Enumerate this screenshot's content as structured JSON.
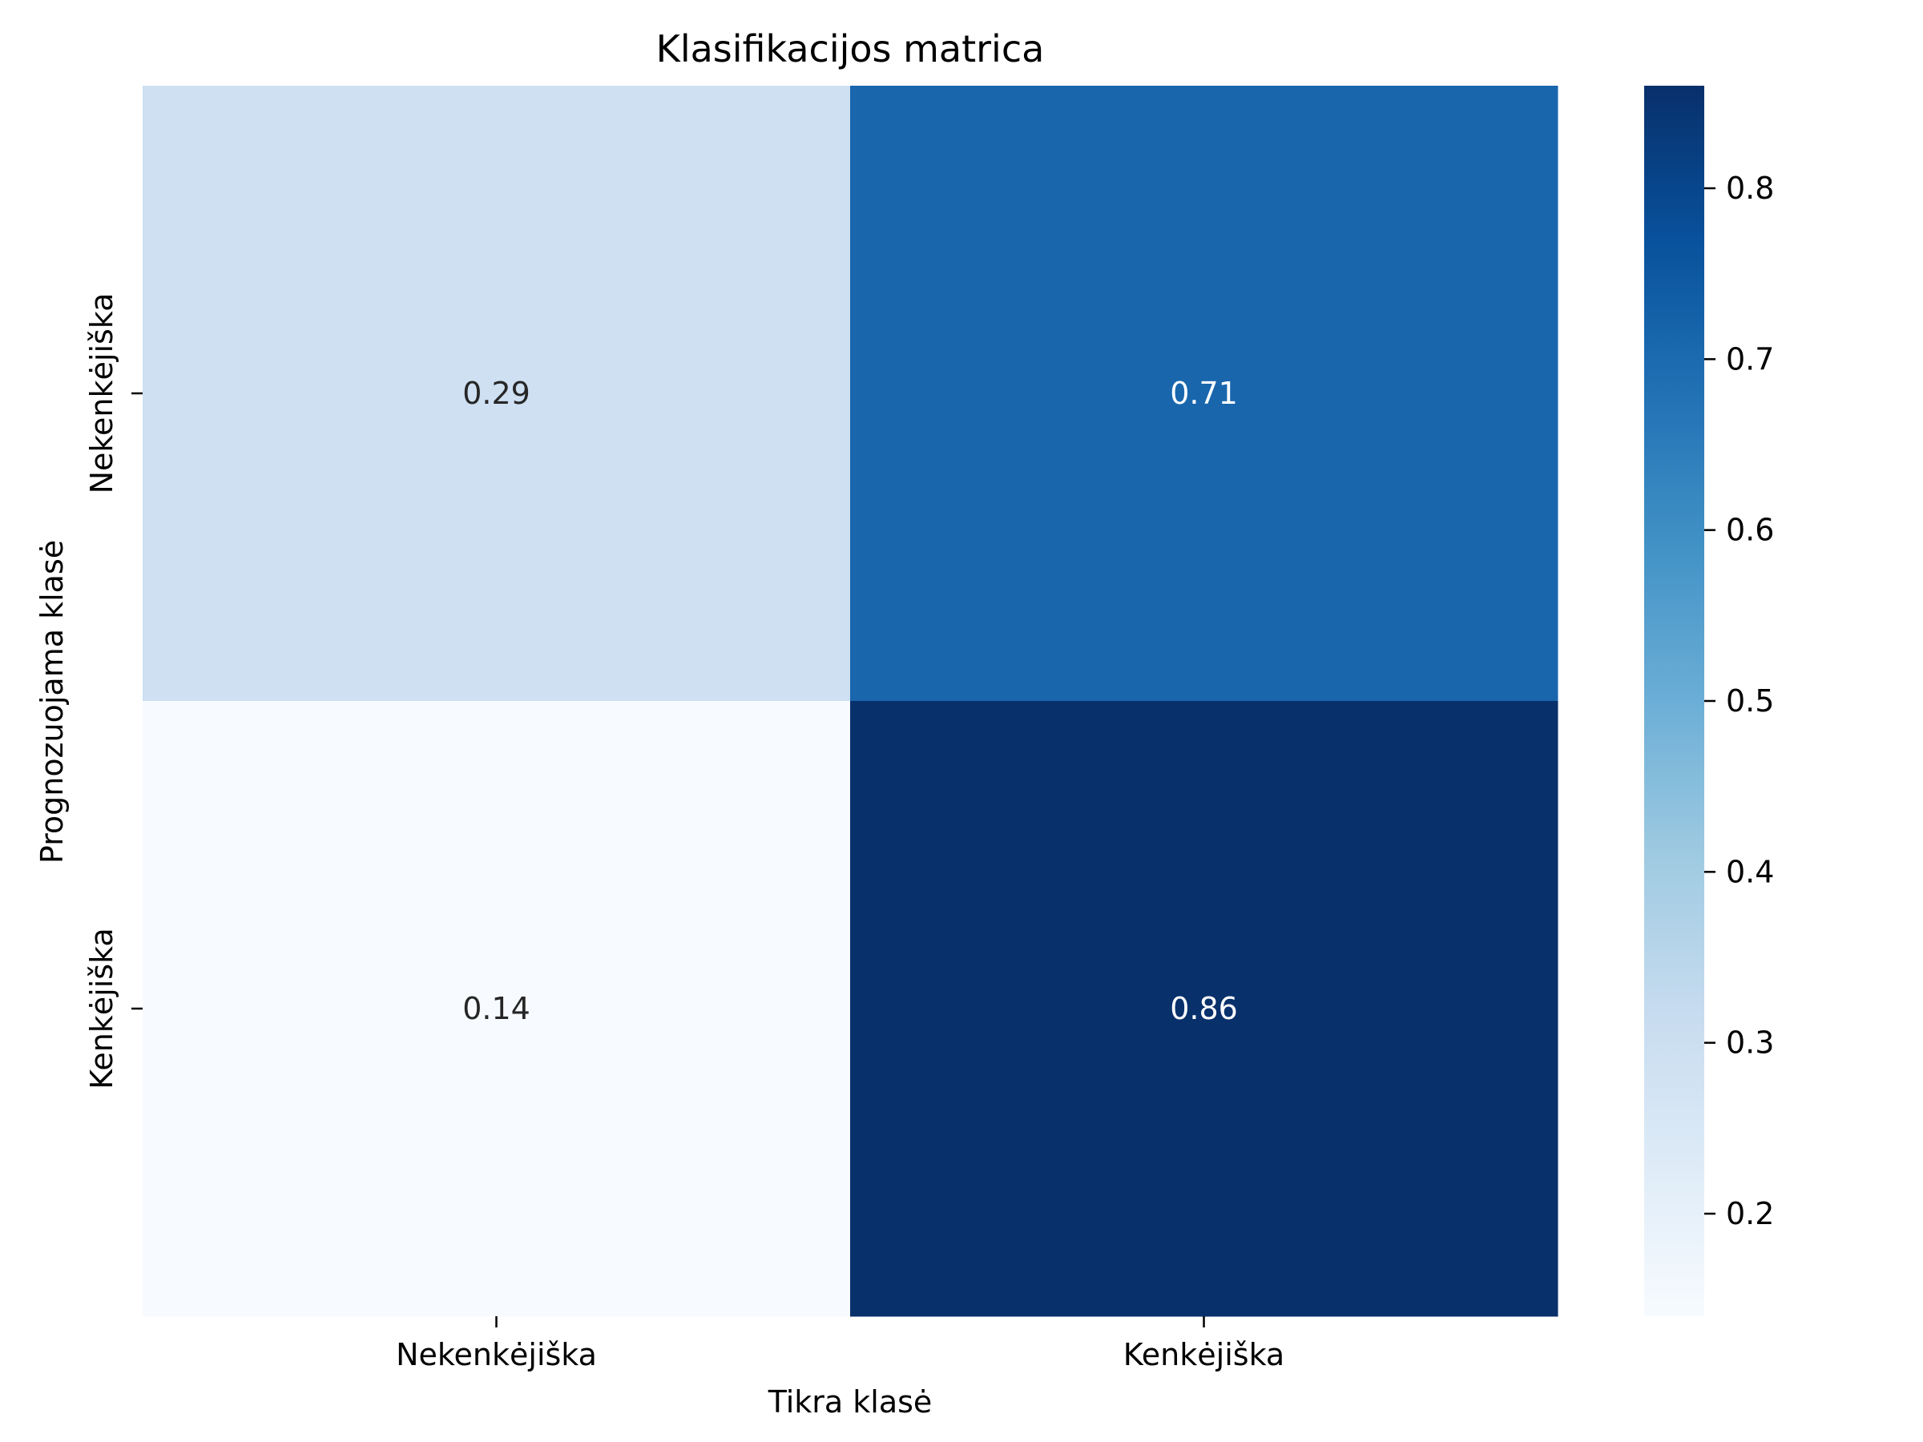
{
  "chart_data": {
    "type": "heatmap",
    "title": "Klasifikacijos matrica",
    "xlabel": "Tikra klasė",
    "ylabel": "Prognozuojama klasė",
    "x_categories": [
      "Nekenkėjiška",
      "Kenkėjiška"
    ],
    "y_categories": [
      "Nekenkėjiška",
      "Kenkėjiška"
    ],
    "values": [
      [
        0.29,
        0.71
      ],
      [
        0.14,
        0.86
      ]
    ],
    "colormap": "Blues",
    "colorbar": {
      "range": [
        0.14,
        0.86
      ],
      "ticks": [
        0.2,
        0.3,
        0.4,
        0.5,
        0.6,
        0.7,
        0.8
      ],
      "tick_labels": [
        "0.2",
        "0.3",
        "0.4",
        "0.5",
        "0.6",
        "0.7",
        "0.8"
      ]
    },
    "grid": false
  }
}
